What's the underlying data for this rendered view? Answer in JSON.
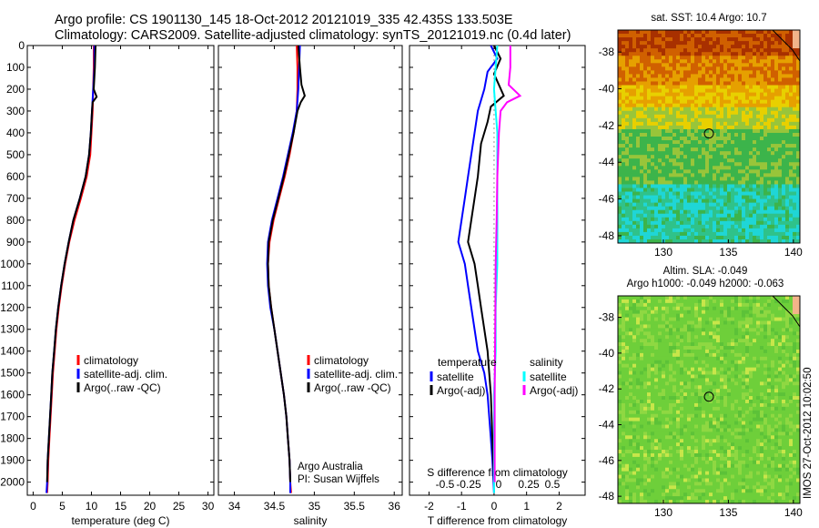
{
  "figure": {
    "title_line1": "Argo profile: CS 1901130_145 18-Oct-2012 20121019_335 42.435S 133.503E",
    "title_line2": "Climatology: CARS2009. Satellite-adjusted climatology: synTS_20121019.nc (0.4d later)",
    "credit": "Argo Australia",
    "pi": "PI: Susan Wijffels",
    "stamp": "IMOS 27-Oct-2012 10:02:50"
  },
  "colors": {
    "climatology": "#ff0000",
    "satellite": "#0000ff",
    "argo": "#000000",
    "sal_satellite": "#00ffff",
    "sal_argo": "#ff00ff",
    "map_circle": "#000000"
  },
  "chart_data": [
    {
      "type": "line",
      "name": "temperature",
      "xlabel": "temperature (deg C)",
      "ylabel": "",
      "xlim": [
        -1,
        31
      ],
      "ylim": [
        2060,
        0
      ],
      "xticks": [
        "0",
        "5",
        "10",
        "15",
        "20",
        "25",
        "30"
      ],
      "yticks": [
        "0",
        "100",
        "200",
        "300",
        "400",
        "500",
        "600",
        "700",
        "800",
        "900",
        "1000",
        "1100",
        "1200",
        "1300",
        "1400",
        "1500",
        "1600",
        "1700",
        "1800",
        "1900",
        "2000"
      ],
      "legend": [
        "climatology",
        "satellite-adj. clim.",
        "Argo(..raw -QC)"
      ],
      "legend_position": "right-center",
      "series": [
        {
          "name": "climatology",
          "color": "#ff0000",
          "points": [
            [
              10.4,
              0
            ],
            [
              10.4,
              100
            ],
            [
              10.3,
              200
            ],
            [
              10.2,
              300
            ],
            [
              10.0,
              400
            ],
            [
              9.8,
              500
            ],
            [
              9.2,
              600
            ],
            [
              8.2,
              700
            ],
            [
              7.1,
              800
            ],
            [
              6.2,
              900
            ],
            [
              5.5,
              1000
            ],
            [
              4.9,
              1100
            ],
            [
              4.4,
              1200
            ],
            [
              4.0,
              1300
            ],
            [
              3.7,
              1400
            ],
            [
              3.4,
              1500
            ],
            [
              3.2,
              1600
            ],
            [
              3.0,
              1700
            ],
            [
              2.8,
              1800
            ],
            [
              2.6,
              1900
            ],
            [
              2.5,
              2000
            ],
            [
              2.4,
              2050
            ]
          ]
        },
        {
          "name": "satellite-adj. clim.",
          "color": "#0000ff",
          "points": [
            [
              10.5,
              0
            ],
            [
              10.5,
              100
            ],
            [
              10.3,
              200
            ],
            [
              10.1,
              300
            ],
            [
              9.9,
              400
            ],
            [
              9.6,
              500
            ],
            [
              9.0,
              600
            ],
            [
              8.0,
              700
            ],
            [
              6.9,
              800
            ],
            [
              6.1,
              900
            ],
            [
              5.4,
              1000
            ],
            [
              4.8,
              1100
            ],
            [
              4.3,
              1200
            ],
            [
              3.9,
              1300
            ],
            [
              3.6,
              1400
            ],
            [
              3.3,
              1500
            ],
            [
              3.1,
              1600
            ],
            [
              2.9,
              1700
            ],
            [
              2.7,
              1800
            ],
            [
              2.5,
              1900
            ],
            [
              2.4,
              2000
            ],
            [
              2.3,
              2050
            ]
          ]
        },
        {
          "name": "Argo(..raw -QC)",
          "color": "#000000",
          "points": [
            [
              10.7,
              0
            ],
            [
              10.6,
              100
            ],
            [
              10.4,
              200
            ],
            [
              10.9,
              235
            ],
            [
              10.2,
              260
            ],
            [
              10.1,
              300
            ],
            [
              9.9,
              400
            ],
            [
              9.6,
              500
            ],
            [
              9.0,
              600
            ],
            [
              8.0,
              700
            ],
            [
              6.9,
              800
            ],
            [
              6.1,
              900
            ],
            [
              5.4,
              1000
            ],
            [
              4.8,
              1100
            ],
            [
              4.3,
              1200
            ],
            [
              3.9,
              1300
            ],
            [
              3.6,
              1400
            ],
            [
              3.3,
              1500
            ],
            [
              3.1,
              1600
            ],
            [
              2.9,
              1700
            ],
            [
              2.7,
              1800
            ],
            [
              2.5,
              1900
            ],
            [
              2.4,
              2000
            ]
          ]
        }
      ]
    },
    {
      "type": "line",
      "name": "salinity",
      "xlabel": "salinity",
      "xlim": [
        33.8,
        36.1
      ],
      "ylim": [
        2060,
        0
      ],
      "xticks": [
        "34",
        "34.5",
        "35",
        "35.5",
        "36"
      ],
      "legend": [
        "climatology",
        "satellite-adj. clim.",
        "Argo(..raw -QC)"
      ],
      "legend_position": "right-center",
      "series": [
        {
          "name": "climatology",
          "color": "#ff0000",
          "points": [
            [
              34.78,
              0
            ],
            [
              34.79,
              100
            ],
            [
              34.79,
              200
            ],
            [
              34.78,
              300
            ],
            [
              34.74,
              400
            ],
            [
              34.69,
              500
            ],
            [
              34.63,
              600
            ],
            [
              34.56,
              700
            ],
            [
              34.49,
              800
            ],
            [
              34.44,
              900
            ],
            [
              34.42,
              1000
            ],
            [
              34.43,
              1100
            ],
            [
              34.46,
              1200
            ],
            [
              34.5,
              1300
            ],
            [
              34.54,
              1400
            ],
            [
              34.58,
              1500
            ],
            [
              34.62,
              1600
            ],
            [
              34.65,
              1700
            ],
            [
              34.67,
              1800
            ],
            [
              34.69,
              1900
            ],
            [
              34.7,
              2000
            ],
            [
              34.71,
              2050
            ]
          ]
        },
        {
          "name": "satellite-adj. clim.",
          "color": "#0000ff",
          "points": [
            [
              34.82,
              0
            ],
            [
              34.81,
              100
            ],
            [
              34.8,
              200
            ],
            [
              34.78,
              300
            ],
            [
              34.73,
              400
            ],
            [
              34.67,
              500
            ],
            [
              34.61,
              600
            ],
            [
              34.54,
              700
            ],
            [
              34.47,
              800
            ],
            [
              34.42,
              900
            ],
            [
              34.41,
              1000
            ],
            [
              34.42,
              1100
            ],
            [
              34.45,
              1200
            ],
            [
              34.5,
              1300
            ],
            [
              34.54,
              1400
            ],
            [
              34.58,
              1500
            ],
            [
              34.62,
              1600
            ],
            [
              34.65,
              1700
            ],
            [
              34.67,
              1800
            ],
            [
              34.69,
              1900
            ],
            [
              34.7,
              2000
            ],
            [
              34.7,
              2050
            ]
          ]
        },
        {
          "name": "Argo(..raw -QC)",
          "color": "#000000",
          "points": [
            [
              34.8,
              0
            ],
            [
              34.82,
              100
            ],
            [
              34.84,
              180
            ],
            [
              34.88,
              230
            ],
            [
              34.83,
              260
            ],
            [
              34.79,
              300
            ],
            [
              34.74,
              400
            ],
            [
              34.68,
              500
            ],
            [
              34.62,
              600
            ],
            [
              34.55,
              700
            ],
            [
              34.48,
              800
            ],
            [
              34.43,
              900
            ],
            [
              34.42,
              1000
            ],
            [
              34.43,
              1100
            ],
            [
              34.46,
              1200
            ],
            [
              34.5,
              1300
            ],
            [
              34.54,
              1400
            ],
            [
              34.58,
              1500
            ],
            [
              34.62,
              1600
            ],
            [
              34.65,
              1700
            ],
            [
              34.67,
              1800
            ],
            [
              34.69,
              1900
            ],
            [
              34.7,
              2000
            ]
          ]
        }
      ]
    },
    {
      "type": "line",
      "name": "difference",
      "xlabel": "T difference from climatology",
      "xlabel_top": "S difference from climatology",
      "xlim": [
        -2.6,
        2.8
      ],
      "ylim": [
        2060,
        0
      ],
      "xticks": [
        "-2",
        "-1",
        "0",
        "1",
        "2"
      ],
      "xticks_s": [
        "-0.5",
        "-0.25",
        "0",
        "0.25",
        "0.5"
      ],
      "legend_t_title": "temperature",
      "legend_s_title": "salinity",
      "legend": [
        "satellite",
        "Argo(-adj)",
        "satellite",
        "Argo(-adj)"
      ],
      "series": [
        {
          "name": "satellite",
          "color": "#0000ff",
          "points": [
            [
              -0.1,
              0
            ],
            [
              0.1,
              60
            ],
            [
              -0.2,
              120
            ],
            [
              -0.3,
              200
            ],
            [
              -0.5,
              300
            ],
            [
              -0.6,
              400
            ],
            [
              -0.7,
              500
            ],
            [
              -0.8,
              600
            ],
            [
              -0.9,
              700
            ],
            [
              -1.0,
              800
            ],
            [
              -1.1,
              900
            ],
            [
              -0.9,
              1000
            ],
            [
              -0.8,
              1100
            ],
            [
              -0.7,
              1200
            ],
            [
              -0.6,
              1300
            ],
            [
              -0.5,
              1400
            ],
            [
              -0.3,
              1500
            ],
            [
              -0.2,
              1600
            ],
            [
              -0.15,
              1700
            ],
            [
              -0.1,
              1800
            ],
            [
              -0.05,
              1900
            ],
            [
              0,
              2050
            ]
          ]
        },
        {
          "name": "Argo(-adj)",
          "color": "#000000",
          "points": [
            [
              0,
              0
            ],
            [
              0.2,
              60
            ],
            [
              0,
              130
            ],
            [
              0.3,
              230
            ],
            [
              -0.1,
              280
            ],
            [
              -0.2,
              350
            ],
            [
              -0.4,
              450
            ],
            [
              -0.5,
              600
            ],
            [
              -0.6,
              700
            ],
            [
              -0.7,
              800
            ],
            [
              -0.8,
              900
            ],
            [
              -0.6,
              1000
            ],
            [
              -0.5,
              1100
            ],
            [
              -0.4,
              1200
            ],
            [
              -0.3,
              1300
            ],
            [
              -0.2,
              1400
            ],
            [
              -0.15,
              1500
            ],
            [
              -0.1,
              1600
            ],
            [
              -0.05,
              1800
            ],
            [
              0,
              2000
            ]
          ]
        },
        {
          "name": "satellite",
          "color": "#00ffff",
          "points": [
            [
              0.1,
              0
            ],
            [
              0.05,
              100
            ],
            [
              0.0,
              200
            ],
            [
              0.05,
              300
            ],
            [
              0.1,
              400
            ],
            [
              0.1,
              600
            ],
            [
              0.1,
              800
            ],
            [
              0.1,
              1000
            ],
            [
              0.05,
              1200
            ],
            [
              0.05,
              1400
            ],
            [
              0.0,
              1600
            ],
            [
              0.0,
              1800
            ],
            [
              0.0,
              2050
            ]
          ]
        },
        {
          "name": "Argo(-adj)",
          "color": "#ff00ff",
          "points": [
            [
              0.5,
              0
            ],
            [
              0.5,
              100
            ],
            [
              0.45,
              180
            ],
            [
              0.8,
              230
            ],
            [
              0.4,
              260
            ],
            [
              0.2,
              300
            ],
            [
              0.15,
              400
            ],
            [
              0.1,
              600
            ],
            [
              0.08,
              800
            ],
            [
              0.05,
              1000
            ],
            [
              0.04,
              1200
            ],
            [
              0.03,
              1400
            ],
            [
              0.02,
              1600
            ],
            [
              0.02,
              1800
            ],
            [
              0.02,
              2000
            ]
          ]
        }
      ]
    },
    {
      "type": "heatmap",
      "name": "sst_map",
      "title": "sat. SST: 10.4  Argo: 10.7",
      "xlim": [
        126.5,
        140.5
      ],
      "ylim": [
        -48.4,
        -36.8
      ],
      "xticks": [
        "130",
        "135",
        "140"
      ],
      "yticks": [
        "-38",
        "-40",
        "-42",
        "-44",
        "-46",
        "-48"
      ],
      "argo_position": [
        133.503,
        -42.435
      ],
      "colormap_order": [
        "#1fd6d6",
        "#2fc28a",
        "#3cb44b",
        "#98c53a",
        "#e8d000",
        "#e6a000",
        "#d06000",
        "#a83000"
      ]
    },
    {
      "type": "heatmap",
      "name": "sla_map",
      "title_line1": "Altim. SLA: -0.049",
      "title_line2": "Argo h1000: -0.049 h2000: -0.063",
      "xlim": [
        126.5,
        140.5
      ],
      "ylim": [
        -48.4,
        -36.8
      ],
      "xticks": [
        "130",
        "135",
        "140"
      ],
      "yticks": [
        "-38",
        "-40",
        "-42",
        "-44",
        "-46",
        "-48"
      ],
      "argo_position": [
        133.503,
        -42.435
      ]
    }
  ]
}
